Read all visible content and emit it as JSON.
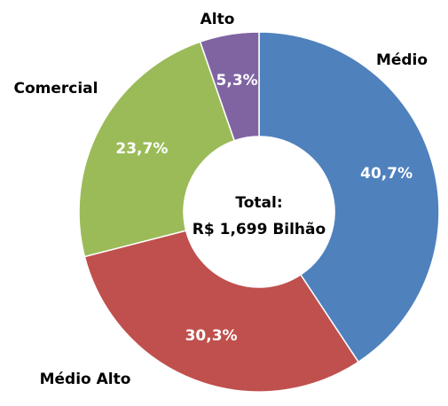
{
  "chart_data": {
    "type": "pie",
    "categories": [
      "Médio",
      "Médio Alto",
      "Comercial",
      "Alto"
    ],
    "values": [
      40.7,
      30.3,
      23.7,
      5.3
    ],
    "value_labels": [
      "40,7%",
      "30,3%",
      "23,7%",
      "5,3%"
    ],
    "colors": [
      "#4f81bd",
      "#c0504d",
      "#9bbb59",
      "#8064a2"
    ],
    "annotations": [
      "Total:",
      "R$ 1,699 Bilhão"
    ]
  }
}
